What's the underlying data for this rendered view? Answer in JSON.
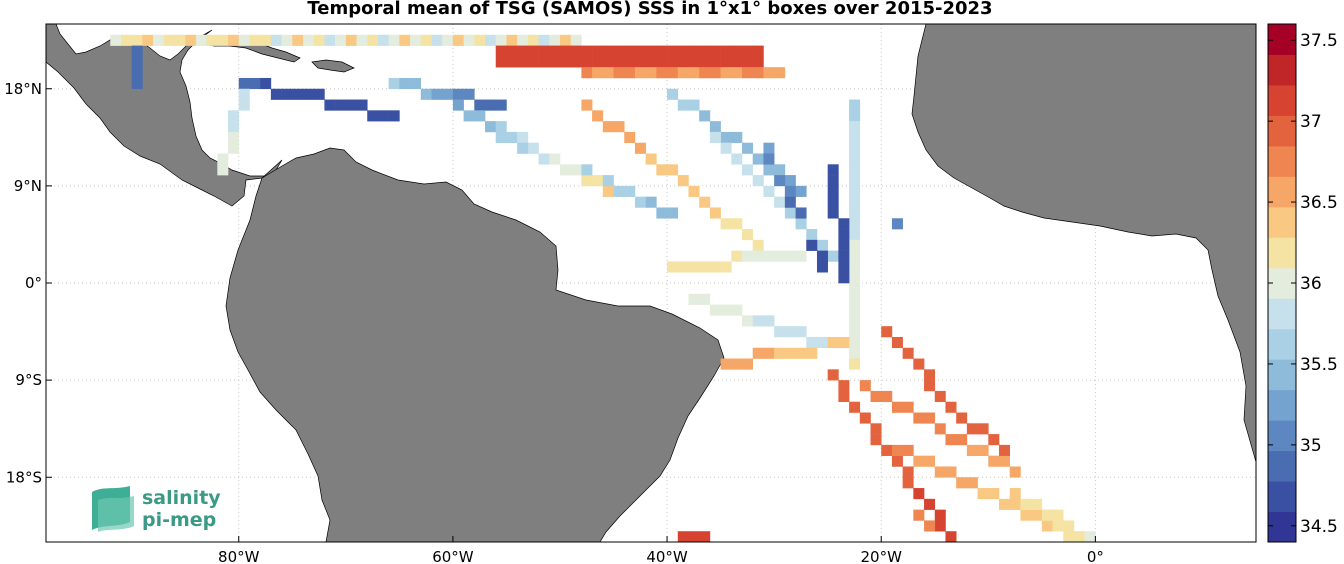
{
  "title": "Temporal mean of TSG (SAMOS) SSS in 1°x1° boxes over 2015-2023",
  "map": {
    "lon_range": [
      -98,
      15
    ],
    "lat_range": [
      -24,
      24
    ],
    "land_color": "#7f7f7f",
    "coastline_color": "#000000",
    "grid": "dotted",
    "x_ticks": [
      {
        "lon": -80,
        "label": "80°W"
      },
      {
        "lon": -60,
        "label": "60°W"
      },
      {
        "lon": -40,
        "label": "40°W"
      },
      {
        "lon": -20,
        "label": "20°W"
      },
      {
        "lon": 0,
        "label": "0°"
      }
    ],
    "y_ticks": [
      {
        "lat": 18,
        "label": "18°N"
      },
      {
        "lat": 9,
        "label": "9°N"
      },
      {
        "lat": 0,
        "label": "0°"
      },
      {
        "lat": -9,
        "label": "9°S"
      },
      {
        "lat": -18,
        "label": "18°S"
      }
    ]
  },
  "colorbar": {
    "min": 34.4,
    "max": 37.6,
    "ticks": [
      "34.5",
      "35",
      "35.5",
      "36",
      "36.5",
      "37",
      "37.5"
    ],
    "colors": [
      "#313695",
      "#3a51a3",
      "#4a6db2",
      "#5d87c1",
      "#74a3cf",
      "#8fbbdb",
      "#a9d0e4",
      "#c6e1ec",
      "#e4ecdd",
      "#f5e3a3",
      "#f9c882",
      "#f6a666",
      "#ef8551",
      "#e4633f",
      "#d64431",
      "#c02528",
      "#a50026"
    ]
  },
  "logo": {
    "line1": "salinity",
    "line2": "pi-mep"
  }
}
